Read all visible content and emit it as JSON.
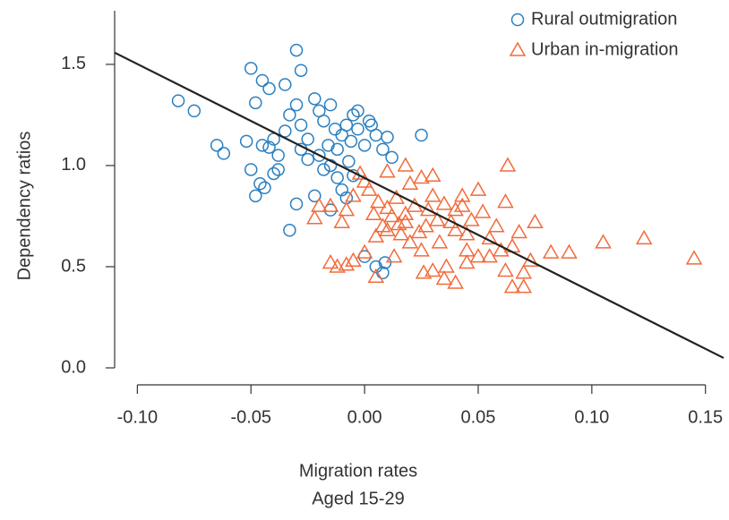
{
  "chart_data": {
    "type": "scatter",
    "x_label": [
      "Migration rates",
      "Aged 15-29"
    ],
    "y_label": "Dependency ratios",
    "xlim": [
      -0.11,
      0.158
    ],
    "ylim": [
      -0.084,
      1.765
    ],
    "xticks": [
      {
        "value": -0.1,
        "label": "-0.10"
      },
      {
        "value": -0.05,
        "label": "-0.05"
      },
      {
        "value": 0,
        "label": "0.00"
      },
      {
        "value": 0.05,
        "label": "0.05"
      },
      {
        "value": 0.1,
        "label": "0.10"
      },
      {
        "value": 0.15,
        "label": "0.15"
      }
    ],
    "yticks": [
      {
        "value": 0,
        "label": "0.0"
      },
      {
        "value": 0.5,
        "label": "0.5"
      },
      {
        "value": 1,
        "label": "1.0"
      },
      {
        "value": 1.5,
        "label": "1.5"
      }
    ],
    "legend": "top-right",
    "series": [
      {
        "name": "Rural outmigration",
        "color": "#2a7fc0",
        "marker": "circle",
        "x": [
          -0.082,
          -0.075,
          -0.065,
          -0.062,
          -0.05,
          -0.048,
          -0.045,
          -0.042,
          -0.04,
          -0.035,
          -0.03,
          -0.028,
          -0.05,
          -0.048,
          -0.046,
          -0.044,
          -0.04,
          -0.038,
          -0.033,
          -0.03,
          -0.052,
          -0.045,
          -0.042,
          -0.038,
          -0.035,
          -0.033,
          -0.03,
          -0.028,
          -0.025,
          -0.022,
          -0.02,
          -0.018,
          -0.015,
          -0.013,
          -0.012,
          -0.01,
          -0.008,
          -0.006,
          -0.005,
          -0.003,
          0,
          0.002,
          0.005,
          0.008,
          0.01,
          0.012,
          0.025,
          -0.02,
          -0.018,
          -0.015,
          -0.012,
          -0.01,
          -0.008,
          -0.005,
          -0.015,
          0,
          0.005,
          0.008,
          0.009,
          -0.022,
          -0.025,
          -0.028,
          -0.003,
          0.003,
          -0.007,
          -0.016
        ],
        "y": [
          1.32,
          1.27,
          1.1,
          1.06,
          1.48,
          1.31,
          1.42,
          1.38,
          1.13,
          1.4,
          1.57,
          1.47,
          0.98,
          0.85,
          0.91,
          0.89,
          0.96,
          0.98,
          0.68,
          0.81,
          1.12,
          1.1,
          1.09,
          1.05,
          1.17,
          1.25,
          1.3,
          1.2,
          1.13,
          1.33,
          1.27,
          1.22,
          1.3,
          1.18,
          1.08,
          1.15,
          1.2,
          1.12,
          1.25,
          1.18,
          1.1,
          1.22,
          1.15,
          1.08,
          1.14,
          1.04,
          1.15,
          1.05,
          0.98,
          1,
          0.94,
          0.88,
          0.84,
          0.95,
          0.78,
          0.55,
          0.5,
          0.47,
          0.52,
          0.85,
          1.03,
          1.08,
          1.27,
          1.2,
          1.02,
          1.1
        ]
      },
      {
        "name": "Urban in-migration",
        "color": "#f26b3a",
        "marker": "triangle",
        "x": [
          0.145,
          0.123,
          0.105,
          0.09,
          0.082,
          0.073,
          0.07,
          0.075,
          0.068,
          0.065,
          0.062,
          0.058,
          0.055,
          0.052,
          0.05,
          0.047,
          0.045,
          0.043,
          0.04,
          0.038,
          0.036,
          0.035,
          0.033,
          0.03,
          0.028,
          0.026,
          0.024,
          0.022,
          0.02,
          0.018,
          0.016,
          0.014,
          0.012,
          0.01,
          0.008,
          0.006,
          0.004,
          0.002,
          0,
          -0.002,
          -0.005,
          -0.008,
          -0.01,
          -0.015,
          -0.02,
          -0.022,
          -0.015,
          -0.012,
          -0.008,
          -0.005,
          0,
          0.005,
          0.013,
          0.02,
          0.025,
          0.03,
          0.04,
          0.045,
          0.055,
          0.06,
          0.062,
          0.045,
          0.043,
          0.035,
          0.032,
          0.027,
          0.018,
          0.015,
          0.01,
          0.005,
          0.025,
          0.04,
          0.063,
          0.018,
          0.01,
          0.03,
          0.065,
          0.05,
          0.07
        ],
        "y": [
          0.54,
          0.64,
          0.62,
          0.57,
          0.57,
          0.53,
          0.4,
          0.72,
          0.67,
          0.6,
          0.82,
          0.7,
          0.64,
          0.77,
          0.88,
          0.73,
          0.58,
          0.85,
          0.68,
          0.72,
          0.5,
          0.44,
          0.62,
          0.95,
          0.78,
          0.47,
          0.67,
          0.8,
          0.91,
          0.72,
          0.66,
          0.84,
          0.75,
          0.79,
          0.7,
          0.82,
          0.76,
          0.88,
          0.92,
          0.96,
          0.85,
          0.78,
          0.72,
          0.8,
          0.8,
          0.74,
          0.52,
          0.5,
          0.51,
          0.53,
          0.57,
          0.45,
          0.55,
          0.62,
          0.58,
          0.48,
          0.42,
          0.52,
          0.55,
          0.58,
          0.48,
          0.66,
          0.8,
          0.81,
          0.73,
          0.7,
          0.76,
          0.71,
          0.68,
          0.65,
          0.94,
          0.78,
          1,
          1,
          0.97,
          0.85,
          0.4,
          0.55,
          0.47
        ]
      }
    ],
    "fit": {
      "color": "#222222",
      "x": [
        -0.11,
        0.158
      ],
      "y": [
        1.558,
        0.049
      ]
    }
  }
}
